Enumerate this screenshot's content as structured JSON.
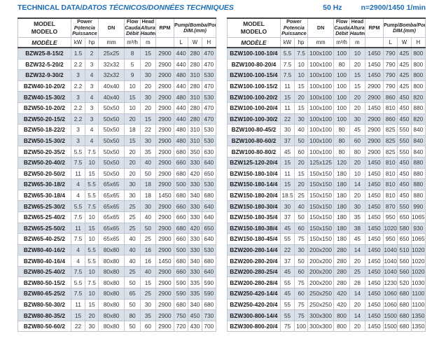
{
  "colors": {
    "accent": "#1a6cb4",
    "stripe_row": "#d9e0ea",
    "grid_line": "#bfc6d0",
    "heavy_rule": "#4a4a4a"
  },
  "title": {
    "main": "TECHNICAL DATA/",
    "translations": "DATOS TÉCNICOS/DONNÉES TECHNIQUES"
  },
  "notes": {
    "frequency": "50 Hz",
    "speed": "n=2900/1450 1/min"
  },
  "header": {
    "model": {
      "en": "MODEL",
      "es": "MODELO",
      "fr": "MODÈLE"
    },
    "power": {
      "en": "Power",
      "es": "Potencia",
      "fr": "Puissance",
      "unit_kw": "kW",
      "unit_hp": "hp"
    },
    "dn": {
      "label": "DN",
      "unit": "mm"
    },
    "flow": {
      "en": "Flow",
      "es": "Caudal",
      "fr": "Débit",
      "unit": "m³/h"
    },
    "head": {
      "en": "Head",
      "es": "Altura",
      "fr": "Hauteur",
      "unit": "m"
    },
    "rpm": {
      "label": "RPM"
    },
    "dim": {
      "en": "Pump/",
      "es_fr": "Bomba/Pompe",
      "line2": "DIM.(mm)",
      "unit_l": "L",
      "unit_w": "W",
      "unit_h": "H"
    }
  },
  "column_ids": [
    "model-cell",
    "power-kw-cell",
    "power-hp-cell",
    "dn-cell",
    "flow-cell",
    "head-cell",
    "rpm-cell",
    "dim-l-cell",
    "dim-w-cell",
    "dim-h-cell"
  ],
  "tables": {
    "left": {
      "rows": [
        [
          "BZW25-8-15/2",
          "1.5",
          "2",
          "25x25",
          "8",
          "15",
          "2900",
          "440",
          "280",
          "470"
        ],
        [
          "BZW32-5-20/2",
          "2.2",
          "3",
          "32x32",
          "5",
          "20",
          "2900",
          "440",
          "280",
          "470"
        ],
        [
          "BZW32-9-30/2",
          "3",
          "4",
          "32x32",
          "9",
          "30",
          "2900",
          "480",
          "310",
          "530"
        ],
        [
          "BZW40-10-20/2",
          "2.2",
          "3",
          "40x40",
          "10",
          "20",
          "2900",
          "440",
          "280",
          "470"
        ],
        [
          "BZW40-15-30/2",
          "3",
          "4",
          "40x40",
          "15",
          "30",
          "2900",
          "480",
          "310",
          "530"
        ],
        [
          "BZW50-10-20/2",
          "2.2",
          "3",
          "50x50",
          "10",
          "20",
          "2900",
          "440",
          "280",
          "470"
        ],
        [
          "BZW50-20-15/2",
          "2.2",
          "3",
          "50x50",
          "20",
          "15",
          "2900",
          "440",
          "280",
          "470"
        ],
        [
          "BZW50-18-22/2",
          "3",
          "4",
          "50x50",
          "18",
          "22",
          "2900",
          "480",
          "310",
          "530"
        ],
        [
          "BZW50-15-30/2",
          "3",
          "4",
          "50x50",
          "15",
          "30",
          "2900",
          "480",
          "310",
          "530"
        ],
        [
          "BZW50-20-35/2",
          "5.5",
          "7.5",
          "50x50",
          "20",
          "35",
          "2900",
          "680",
          "350",
          "630"
        ],
        [
          "BZW50-20-40/2",
          "7.5",
          "10",
          "50x50",
          "20",
          "40",
          "2900",
          "660",
          "330",
          "640"
        ],
        [
          "BZW50-20-50/2",
          "11",
          "15",
          "50x50",
          "20",
          "50",
          "2900",
          "680",
          "420",
          "650"
        ],
        [
          "BZW65-30-18/2",
          "4",
          "5.5",
          "65x65",
          "30",
          "18",
          "2900",
          "500",
          "330",
          "530"
        ],
        [
          "BZW65-30-18/4",
          "4",
          "5.5",
          "65x65",
          "30",
          "18",
          "1450",
          "680",
          "340",
          "680"
        ],
        [
          "BZW65-25-30/2",
          "5.5",
          "7.5",
          "65x65",
          "25",
          "30",
          "2900",
          "660",
          "330",
          "640"
        ],
        [
          "BZW65-25-40/2",
          "7.5",
          "10",
          "65x65",
          "25",
          "40",
          "2900",
          "660",
          "330",
          "640"
        ],
        [
          "BZW65-25-50/2",
          "11",
          "15",
          "65x65",
          "25",
          "50",
          "2900",
          "680",
          "420",
          "650"
        ],
        [
          "BZW65-40-25/2",
          "7.5",
          "10",
          "65x65",
          "40",
          "25",
          "2900",
          "660",
          "330",
          "640"
        ],
        [
          "BZW80-40-16/2",
          "4",
          "5.5",
          "80x80",
          "40",
          "16",
          "2900",
          "500",
          "330",
          "530"
        ],
        [
          "BZW80-40-16/4",
          "4",
          "5.5",
          "80x80",
          "40",
          "16",
          "1450",
          "680",
          "340",
          "680"
        ],
        [
          "BZW80-25-40/2",
          "7.5",
          "10",
          "80x80",
          "25",
          "40",
          "2900",
          "660",
          "330",
          "640"
        ],
        [
          "BZW80-50-15/2",
          "5.5",
          "7.5",
          "80x80",
          "50",
          "15",
          "2900",
          "590",
          "335",
          "590"
        ],
        [
          "BZW80-65-25/2",
          "7.5",
          "10",
          "80x80",
          "65",
          "25",
          "2900",
          "590",
          "335",
          "590"
        ],
        [
          "BZW80-50-30/2",
          "11",
          "15",
          "80x80",
          "50",
          "30",
          "2900",
          "680",
          "340",
          "680"
        ],
        [
          "BZW80-80-35/2",
          "15",
          "20",
          "80x80",
          "80",
          "35",
          "2900",
          "750",
          "450",
          "730"
        ],
        [
          "BZW80-50-60/2",
          "22",
          "30",
          "80x80",
          "50",
          "60",
          "2900",
          "720",
          "430",
          "700"
        ]
      ]
    },
    "right": {
      "rows": [
        [
          "BZW100-100-10/4",
          "5.5",
          "7.5",
          "100x100",
          "100",
          "10",
          "1450",
          "790",
          "425",
          "800"
        ],
        [
          "BZW100-80-20/4",
          "7.5",
          "10",
          "100x100",
          "80",
          "20",
          "1450",
          "790",
          "425",
          "800"
        ],
        [
          "BZW100-100-15/4",
          "7.5",
          "10",
          "100x100",
          "100",
          "15",
          "1450",
          "790",
          "425",
          "800"
        ],
        [
          "BZW100-100-15/2",
          "11",
          "15",
          "100x100",
          "100",
          "15",
          "2900",
          "790",
          "425",
          "800"
        ],
        [
          "BZW100-100-20/2",
          "15",
          "20",
          "100x100",
          "100",
          "20",
          "2900",
          "860",
          "450",
          "820"
        ],
        [
          "BZW100-100-20/4",
          "11",
          "15",
          "100x100",
          "100",
          "20",
          "1450",
          "810",
          "450",
          "880"
        ],
        [
          "BZW100-100-30/2",
          "22",
          "30",
          "100x100",
          "100",
          "30",
          "2900",
          "860",
          "450",
          "820"
        ],
        [
          "BZW100-80-45/2",
          "30",
          "40",
          "100x100",
          "80",
          "45",
          "2900",
          "825",
          "550",
          "840"
        ],
        [
          "BZW100-80-60/2",
          "37",
          "50",
          "100x100",
          "80",
          "60",
          "2900",
          "825",
          "550",
          "840"
        ],
        [
          "BZW100-80-80/2",
          "45",
          "60",
          "100x100",
          "80",
          "80",
          "2900",
          "825",
          "550",
          "840"
        ],
        [
          "BZW125-120-20/4",
          "15",
          "20",
          "125x125",
          "120",
          "20",
          "1450",
          "810",
          "450",
          "880"
        ],
        [
          "BZW150-180-10/4",
          "11",
          "15",
          "150x150",
          "180",
          "10",
          "1450",
          "810",
          "450",
          "880"
        ],
        [
          "BZW150-180-14/4",
          "15",
          "20",
          "150x150",
          "180",
          "14",
          "1450",
          "810",
          "450",
          "880"
        ],
        [
          "BZW150-180-20/4",
          "18.5",
          "25",
          "150x150",
          "180",
          "20",
          "1450",
          "810",
          "450",
          "880"
        ],
        [
          "BZW150-180-30/4",
          "30",
          "40",
          "150x150",
          "180",
          "30",
          "1450",
          "870",
          "550",
          "990"
        ],
        [
          "BZW150-180-35/4",
          "37",
          "50",
          "150x150",
          "180",
          "35",
          "1450",
          "950",
          "650",
          "1065"
        ],
        [
          "BZW150-180-38/4",
          "45",
          "60",
          "150x150",
          "180",
          "38",
          "1450",
          "1020",
          "580",
          "930"
        ],
        [
          "BZW150-180-45/4",
          "55",
          "75",
          "150x150",
          "180",
          "45",
          "1450",
          "950",
          "650",
          "1065"
        ],
        [
          "BZW200-280-14/4",
          "22",
          "30",
          "200x200",
          "280",
          "14",
          "1450",
          "1040",
          "510",
          "1020"
        ],
        [
          "BZW200-280-20/4",
          "37",
          "50",
          "200x200",
          "280",
          "20",
          "1450",
          "1040",
          "560",
          "1020"
        ],
        [
          "BZW200-280-25/4",
          "45",
          "60",
          "200x200",
          "280",
          "25",
          "1450",
          "1040",
          "560",
          "1020"
        ],
        [
          "BZW200-280-28/4",
          "55",
          "75",
          "200x200",
          "280",
          "28",
          "1450",
          "1230",
          "520",
          "1030"
        ],
        [
          "BZW250-420-14/4",
          "45",
          "60",
          "250x250",
          "420",
          "14",
          "1450",
          "1060",
          "680",
          "1100"
        ],
        [
          "BZW250-420-20/4",
          "55",
          "75",
          "250x250",
          "420",
          "20",
          "1450",
          "1060",
          "680",
          "1100"
        ],
        [
          "BZW300-800-14/4",
          "55",
          "75",
          "300x300",
          "800",
          "14",
          "1450",
          "1500",
          "680",
          "1350"
        ],
        [
          "BZW300-800-20/4",
          "75",
          "100",
          "300x300",
          "800",
          "20",
          "1450",
          "1500",
          "680",
          "1350"
        ]
      ]
    }
  }
}
